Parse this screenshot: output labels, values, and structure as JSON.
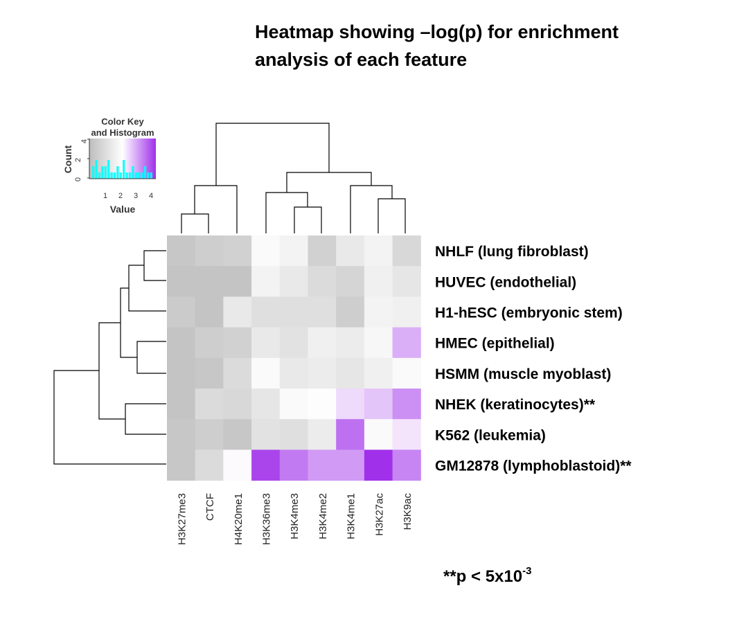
{
  "title_line1": "Heatmap showing –log(p) for enrichment",
  "title_line2": "analysis of each feature",
  "note": {
    "prefix": "**p < 5x10",
    "exponent": "-3"
  },
  "color_key": {
    "title_line1": "Color Key",
    "title_line2": "and Histogram",
    "ylabel": "Count",
    "yticks": [
      "0",
      "2",
      "4"
    ],
    "xlabel": "Value",
    "xticks": [
      "1",
      "2",
      "3",
      "4"
    ],
    "gradient": [
      "#bdbdbd",
      "#ffffff",
      "#a030ea"
    ],
    "histogram_color": "#00ffff"
  },
  "chart_data": {
    "type": "heatmap",
    "title": "Heatmap showing –log(p) for enrichment analysis of each feature",
    "columns": [
      "H3K27me3",
      "CTCF",
      "H4K20me1",
      "H3K36me3",
      "H3K4me3",
      "H3K4me2",
      "H3K4me1",
      "H3K27ac",
      "H3K9ac"
    ],
    "rows": [
      "NHLF (lung fibroblast)",
      "HUVEC (endothelial)",
      "H1-hESC (embryonic stem)",
      "HMEC (epithelial)",
      "HSMM (muscle myoblast)",
      "NHEK (keratinocytes)**",
      "K562 (leukemia)",
      "GM12878 (lymphoblastoid)**"
    ],
    "value_range": [
      0.3,
      4.2
    ],
    "values": [
      [
        0.6,
        0.8,
        0.9,
        2.1,
        1.9,
        0.9,
        1.6,
        1.9,
        1.1
      ],
      [
        0.5,
        0.5,
        0.5,
        1.9,
        1.6,
        1.2,
        1.0,
        1.8,
        1.5
      ],
      [
        0.7,
        0.5,
        1.6,
        1.3,
        1.3,
        1.3,
        0.8,
        1.9,
        1.8
      ],
      [
        0.5,
        0.8,
        0.9,
        1.6,
        1.4,
        1.8,
        1.7,
        2.0,
        3.0
      ],
      [
        0.5,
        0.6,
        1.2,
        2.1,
        1.6,
        1.7,
        1.5,
        1.8,
        2.1
      ],
      [
        0.5,
        1.2,
        1.1,
        1.5,
        2.1,
        2.2,
        2.6,
        2.8,
        3.3
      ],
      [
        0.6,
        0.8,
        0.6,
        1.4,
        1.3,
        1.7,
        3.6,
        2.1,
        2.5
      ],
      [
        0.6,
        1.2,
        2.3,
        4.0,
        3.5,
        3.2,
        3.2,
        4.3,
        3.4
      ]
    ],
    "row_order_note": "rows listed top to bottom, columns left to right"
  }
}
